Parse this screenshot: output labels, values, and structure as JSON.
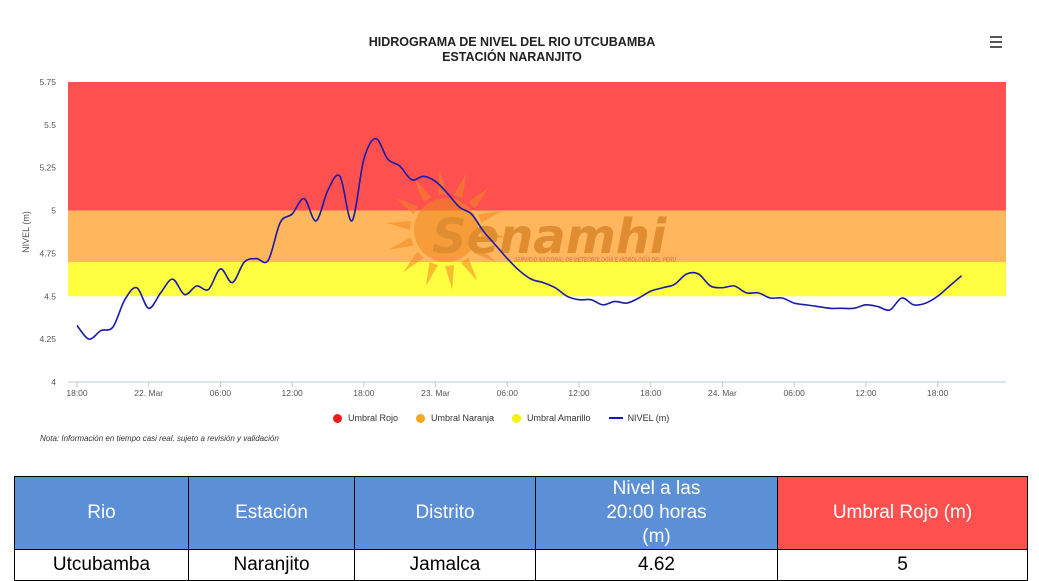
{
  "chart_data": {
    "type": "line",
    "title": "HIDROGRAMA DE NIVEL DEL RIO UTCUBAMBA",
    "subtitle": "ESTACIÓN NARANJITO",
    "ylabel": "NIVEL (m)",
    "xlabel": "",
    "ylim": [
      4,
      5.75
    ],
    "yticks": [
      "4",
      "4.25",
      "4.5",
      "4.75",
      "5",
      "5.25",
      "5.5",
      "5.75"
    ],
    "xtick_labels": [
      "18:00",
      "22. Mar",
      "06:00",
      "12:00",
      "18:00",
      "23. Mar",
      "06:00",
      "12:00",
      "18:00",
      "24. Mar",
      "06:00",
      "12:00",
      "18:00"
    ],
    "bands": [
      {
        "name": "Umbral Rojo",
        "from": 5.0,
        "to": 5.75,
        "color": "#ff5050"
      },
      {
        "name": "Umbral Naranja",
        "from": 4.7,
        "to": 5.0,
        "color": "#ffb65c"
      },
      {
        "name": "Umbral Amarillo",
        "from": 4.5,
        "to": 4.7,
        "color": "#ffff42"
      }
    ],
    "series": [
      {
        "name": "NIVEL (m)",
        "color": "#1a1aaa",
        "x_hours": [
          0,
          1,
          2,
          3,
          4,
          5,
          6,
          7,
          8,
          9,
          10,
          11,
          12,
          13,
          14,
          15,
          16,
          17,
          18,
          19,
          20,
          21,
          22,
          23,
          24,
          25,
          26,
          27,
          28,
          29,
          30,
          31,
          32,
          33,
          34,
          35,
          36,
          37,
          38,
          39,
          40,
          41,
          42,
          43,
          44,
          45,
          46,
          47,
          48,
          49,
          50,
          51,
          52,
          53,
          54,
          55,
          56,
          57,
          58,
          59,
          60,
          61,
          62,
          63,
          64,
          65,
          66,
          67,
          68,
          69,
          70,
          71,
          72,
          73,
          74
        ],
        "values": [
          4.33,
          4.25,
          4.3,
          4.32,
          4.48,
          4.55,
          4.43,
          4.52,
          4.6,
          4.51,
          4.56,
          4.54,
          4.66,
          4.58,
          4.7,
          4.72,
          4.71,
          4.93,
          4.98,
          5.07,
          4.94,
          5.12,
          5.2,
          4.94,
          5.3,
          5.42,
          5.3,
          5.26,
          5.18,
          5.2,
          5.17,
          5.1,
          5.02,
          4.98,
          4.88,
          4.8,
          4.72,
          4.65,
          4.6,
          4.58,
          4.55,
          4.5,
          4.48,
          4.48,
          4.45,
          4.47,
          4.46,
          4.49,
          4.53,
          4.55,
          4.57,
          4.63,
          4.63,
          4.56,
          4.55,
          4.56,
          4.52,
          4.52,
          4.49,
          4.49,
          4.46,
          4.45,
          4.44,
          4.43,
          4.43,
          4.43,
          4.45,
          4.44,
          4.42,
          4.49,
          4.45,
          4.46,
          4.5,
          4.56,
          4.62
        ]
      }
    ],
    "legend": [
      "Umbral Rojo",
      "Umbral Naranja",
      "Umbral Amarillo",
      "NIVEL (m)"
    ],
    "legend_placement": "bottom",
    "grid": false
  },
  "note": "Nota: Información en tiempo casi real, sujeto a revisión y validación",
  "watermark": {
    "text": "Senamhi",
    "subtext": "SERVICIO NACIONAL DE METEOROLOGÍA E HIDROLOGÍA DEL PERÚ"
  },
  "table": {
    "headers": [
      "Rio",
      "Estación",
      "Distrito",
      "Nivel a las 20:00 horas (m)",
      "Umbral Rojo (m)"
    ],
    "header_colors": [
      "#5b8fd6",
      "#5b8fd6",
      "#5b8fd6",
      "#5b8fd6",
      "#ff5050"
    ],
    "row": [
      "Utcubamba",
      "Naranjito",
      "Jamalca",
      "4.62",
      "5"
    ]
  },
  "menu_icon": "hamburger-menu-icon",
  "colors": {
    "level_line": "#1a1aaa",
    "red": "#ff5050",
    "orange": "#ffb65c",
    "yellow": "#ffff42",
    "header_blue": "#5b8fd6"
  }
}
